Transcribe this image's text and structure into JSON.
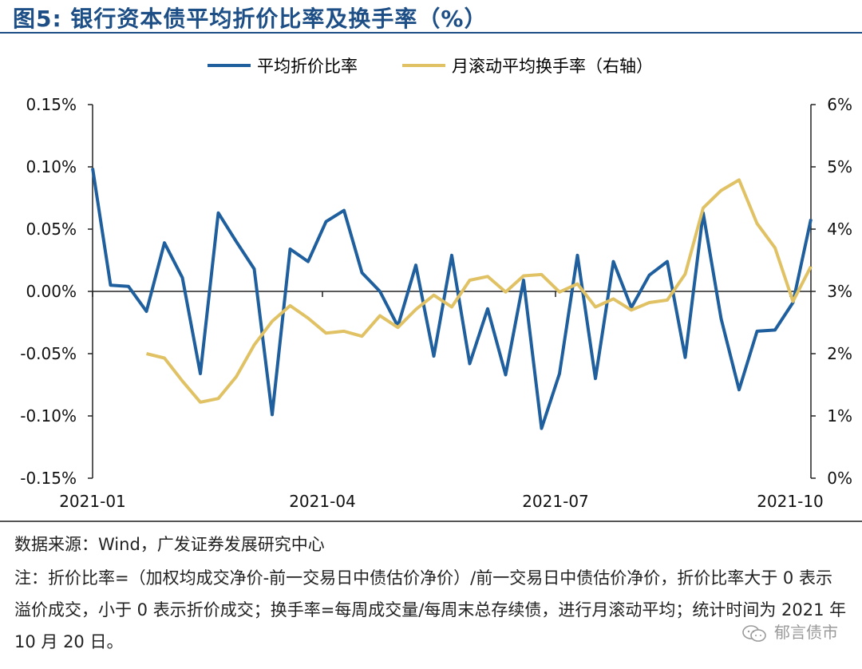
{
  "figure": {
    "title": "图5:  银行资本债平均折价比率及换手率（%）",
    "source": "数据来源：Wind，广发证券发展研究中心",
    "note": "注：折价比率=（加权均成交净价-前一交易日中债估价净价）/前一交易日中债估价净价，折价比率大于 0 表示溢价成交，小于 0 表示折价成交；换手率=每周成交量/每周末总存续债，进行月滚动平均；统计时间为 2021 年 10 月 20 日。",
    "watermark": "郁言债市"
  },
  "chart_data": {
    "type": "line",
    "x_ticks": [
      "2021-01",
      "2021-04",
      "2021-07",
      "2021-10"
    ],
    "y_left": {
      "ylim": [
        -0.15,
        0.15
      ],
      "ticks": [
        "-0.15%",
        "-0.10%",
        "-0.05%",
        "0.00%",
        "0.05%",
        "0.10%",
        "0.15%"
      ]
    },
    "y_right": {
      "ylim": [
        0,
        6
      ],
      "ticks": [
        "0%",
        "1%",
        "2%",
        "3%",
        "4%",
        "5%",
        "6%"
      ]
    },
    "legend_position": "top-center",
    "grid": false,
    "series": [
      {
        "name": "平均折价比率",
        "axis": "left",
        "color": "#1f5f9e",
        "values": [
          0.099,
          0.005,
          0.004,
          -0.016,
          0.039,
          0.011,
          -0.066,
          0.063,
          0.04,
          0.018,
          -0.099,
          0.034,
          0.024,
          0.056,
          0.065,
          0.015,
          0.0,
          -0.028,
          0.021,
          -0.052,
          0.029,
          -0.058,
          -0.014,
          -0.067,
          0.009,
          -0.11,
          -0.066,
          0.029,
          -0.07,
          0.024,
          -0.013,
          0.013,
          0.024,
          -0.053,
          0.063,
          -0.022,
          -0.079,
          -0.032,
          -0.031,
          -0.009,
          0.058
        ]
      },
      {
        "name": "月滚动平均换手率（右轴）",
        "axis": "right",
        "color": "#e0c265",
        "start_index": 3,
        "values": [
          2.0,
          1.93,
          1.56,
          1.22,
          1.28,
          1.63,
          2.14,
          2.52,
          2.77,
          2.57,
          2.33,
          2.36,
          2.28,
          2.61,
          2.42,
          2.71,
          2.94,
          2.75,
          3.18,
          3.24,
          2.99,
          3.25,
          3.27,
          2.99,
          3.12,
          2.75,
          2.88,
          2.7,
          2.82,
          2.86,
          3.28,
          4.34,
          4.62,
          4.79,
          4.09,
          3.7,
          2.84,
          3.4
        ]
      }
    ]
  }
}
